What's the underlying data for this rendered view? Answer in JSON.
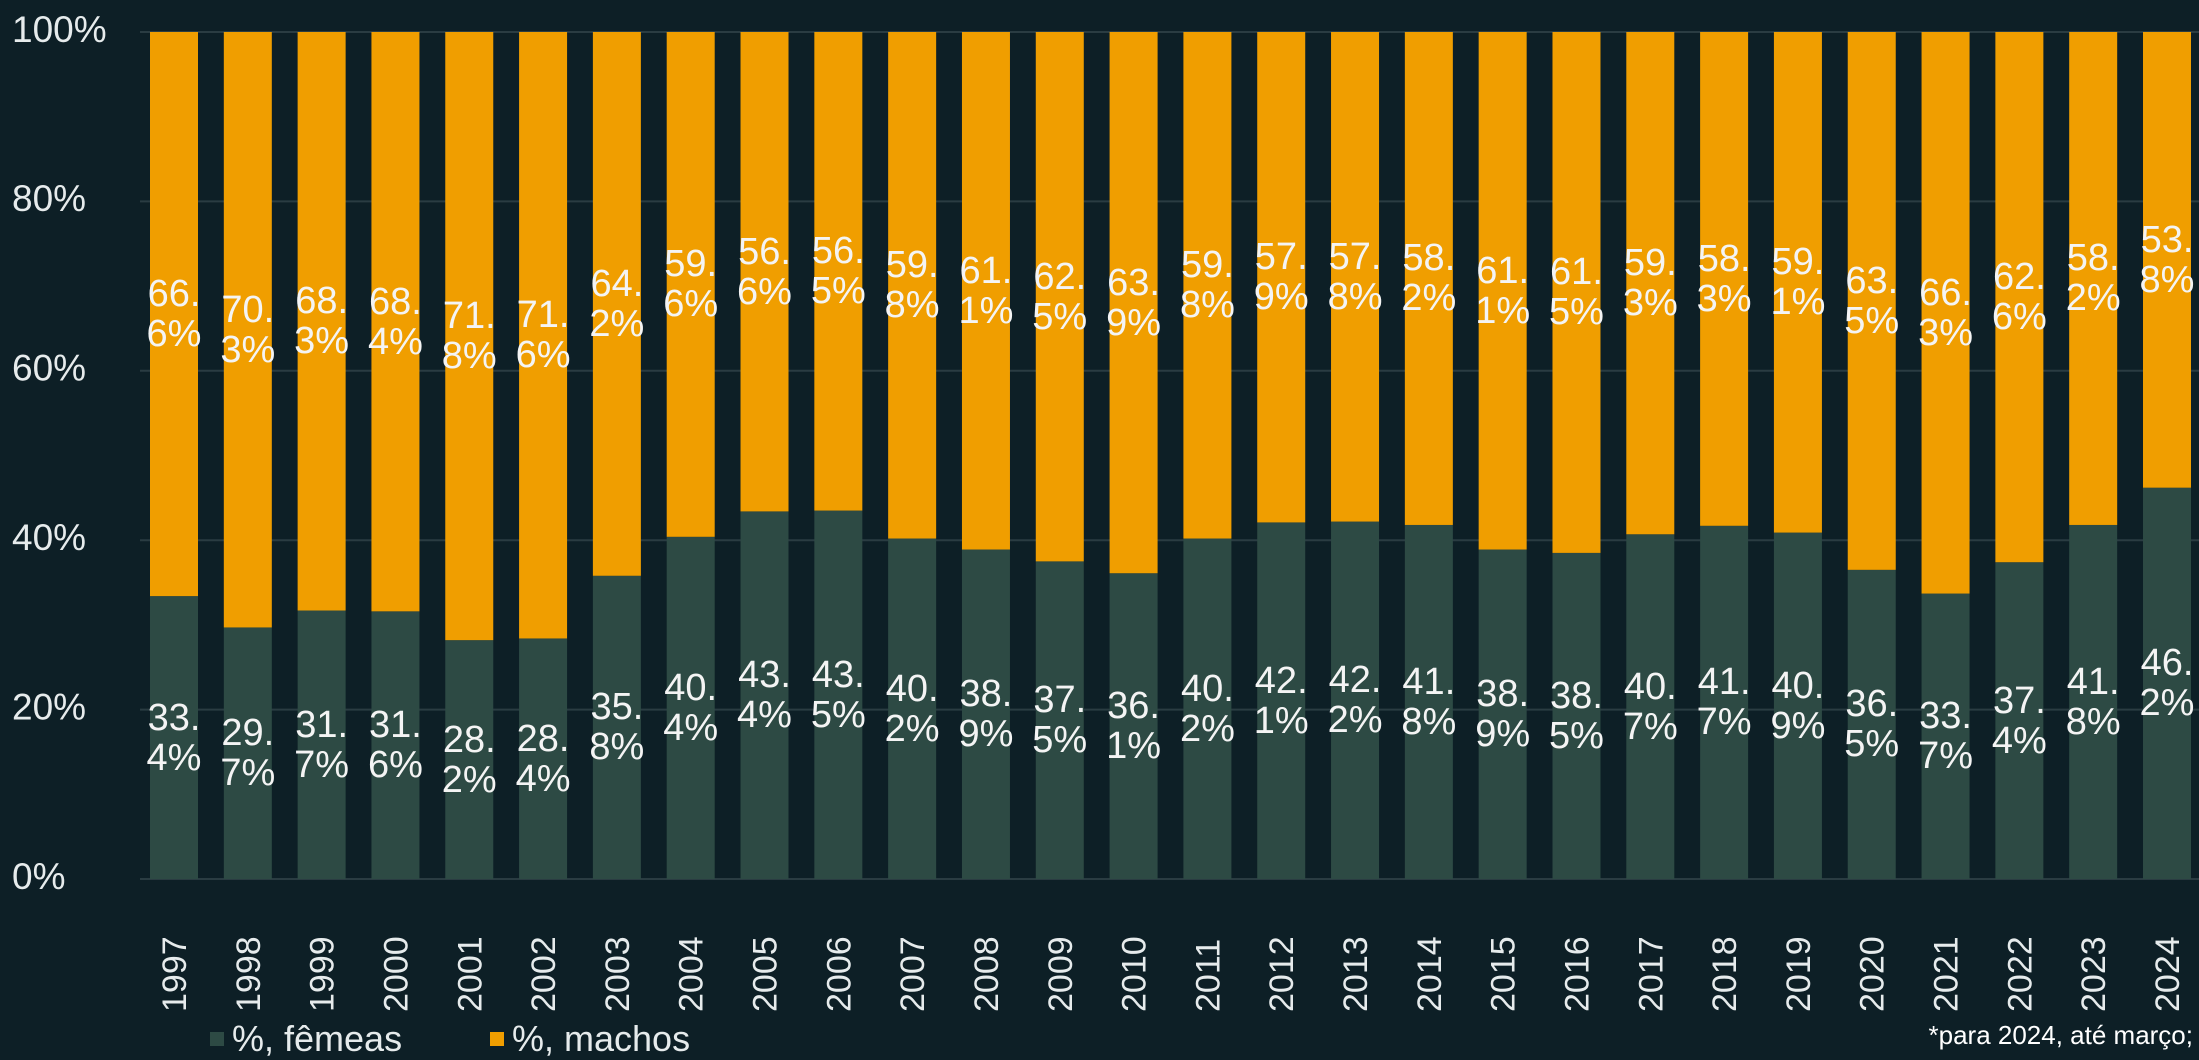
{
  "chart_data": {
    "type": "stacked-bar",
    "categories": [
      "1997",
      "1998",
      "1999",
      "2000",
      "2001",
      "2002",
      "2003",
      "2004",
      "2005",
      "2006",
      "2007",
      "2008",
      "2009",
      "2010",
      "2011",
      "2012",
      "2013",
      "2014",
      "2015",
      "2016",
      "2017",
      "2018",
      "2019",
      "2020",
      "2021",
      "2022",
      "2023",
      "2024"
    ],
    "series": [
      {
        "name": "%, fêmeas",
        "color": "#2d4a44",
        "values": [
          33.4,
          29.7,
          31.7,
          31.6,
          28.2,
          28.4,
          35.8,
          40.4,
          43.4,
          43.5,
          40.2,
          38.9,
          37.5,
          36.1,
          40.2,
          42.1,
          42.2,
          41.8,
          38.9,
          38.5,
          40.7,
          41.7,
          40.9,
          36.5,
          33.7,
          37.4,
          41.8,
          46.2
        ],
        "value_labels": [
          "33.4%",
          "29.7%",
          "31.7%",
          "31.6%",
          "28.2%",
          "28.4%",
          "35.8%",
          "40.4%",
          "43.4%",
          "43.5%",
          "40.2%",
          "38.9%",
          "37.5%",
          "36.1%",
          "40.2%",
          "42.1%",
          "42.2%",
          "41.8%",
          "38.9%",
          "38.5%",
          "40.7%",
          "41.7%",
          "40.9%",
          "36.5%",
          "33.7%",
          "37.4%",
          "41.8%",
          "46.2%"
        ]
      },
      {
        "name": "%, machos",
        "color": "#f09e00",
        "values": [
          66.6,
          70.3,
          68.3,
          68.4,
          71.8,
          71.6,
          64.2,
          59.6,
          56.6,
          56.5,
          59.8,
          61.1,
          62.5,
          63.9,
          59.8,
          57.9,
          57.8,
          58.2,
          61.1,
          61.5,
          59.3,
          58.3,
          59.1,
          63.5,
          66.3,
          62.6,
          58.2,
          53.8
        ],
        "value_labels": [
          "66.6%",
          "70.3%",
          "68.3%",
          "68.4%",
          "71.8%",
          "71.6%",
          "64.2%",
          "59.6%",
          "56.6%",
          "56.5%",
          "59.8%",
          "61.1%",
          "62.5%",
          "63.9%",
          "59.8%",
          "57.9%",
          "57.8%",
          "58.2%",
          "61.1%",
          "61.5%",
          "59.3%",
          "58.3%",
          "59.1%",
          "63.5%",
          "66.3%",
          "62.6%",
          "58.2%",
          "53.8%"
        ]
      }
    ],
    "ylim": [
      0,
      100
    ],
    "yticks": [
      {
        "value": 0,
        "label": "0%"
      },
      {
        "value": 20,
        "label": "20%"
      },
      {
        "value": 40,
        "label": "40%"
      },
      {
        "value": 60,
        "label": "60%"
      },
      {
        "value": 80,
        "label": "80%"
      },
      {
        "value": 100,
        "label": "100%"
      }
    ],
    "grid": true,
    "footnote": "*para 2024, até março;"
  }
}
